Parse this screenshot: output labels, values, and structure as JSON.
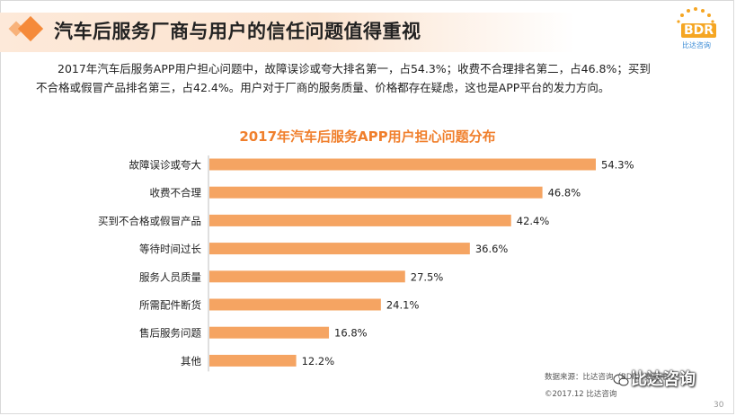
{
  "header": {
    "title": "汽车后服务厂商与用户的信任问题值得重视"
  },
  "logo": {
    "text": "BDR",
    "subtext": "比达咨询"
  },
  "summary": {
    "line1": "2017年汽车后服务APP用户担心问题中，故障误诊或夸大排名第一，占54.3%；收费不合理排名第二，占46.8%；买到",
    "line2": "不合格或假冒产品排名第三，占42.4%。用户对于厂商的服务质量、价格都存在疑虑，这也是APP平台的发力方向。"
  },
  "chart_data": {
    "type": "bar",
    "orientation": "horizontal",
    "title": "2017年汽车后服务APP用户担心问题分布",
    "categories": [
      "故障误诊或夸大",
      "收费不合理",
      "买到不合格或假冒产品",
      "等待时间过长",
      "服务人员质量",
      "所需配件断货",
      "售后服务问题",
      "其他"
    ],
    "values": [
      54.3,
      46.8,
      42.4,
      36.6,
      27.5,
      24.1,
      16.8,
      12.2
    ],
    "value_labels": [
      "54.3%",
      "46.8%",
      "42.4%",
      "36.6%",
      "27.5%",
      "24.1%",
      "16.8%",
      "12.2%"
    ],
    "xlabel": "",
    "ylabel": "",
    "xlim": [
      0,
      60
    ],
    "grid": false,
    "legend": "none",
    "bar_color": "#f5a462",
    "title_color": "#f07f2c"
  },
  "footer": {
    "source": "数据来源：比达咨询（BDR）数据中心",
    "copyright": "©2017.12  比达咨询",
    "watermark": "比达咨询",
    "page_number": "30"
  }
}
